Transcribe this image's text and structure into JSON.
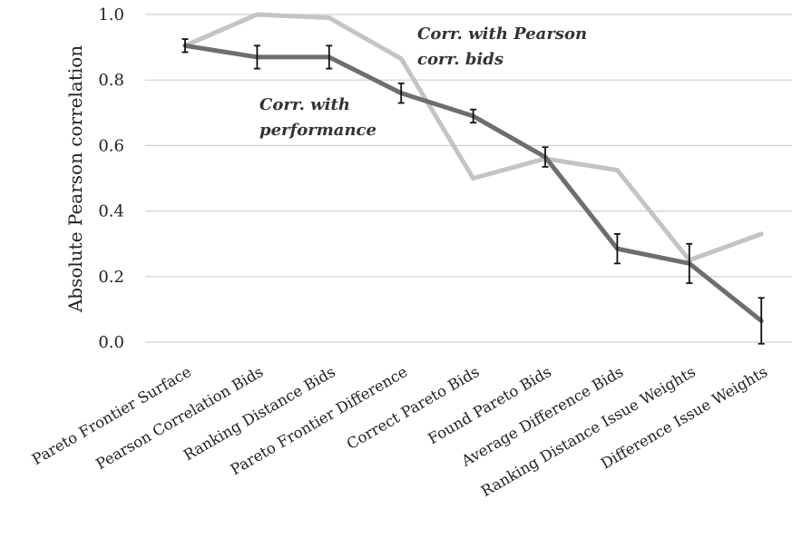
{
  "chart_data": {
    "type": "line",
    "ylabel": "Absolute Pearson correlation",
    "ylim": [
      0,
      1
    ],
    "yticks": [
      "0.0",
      "0.2",
      "0.4",
      "0.6",
      "0.8",
      "1.0"
    ],
    "grid": true,
    "categories": [
      "Pareto Frontier Surface",
      "Pearson Correlation Bids",
      "Ranking Distance Bids",
      "Pareto Frontier Difference",
      "Correct Pareto Bids",
      "Found Pareto Bids",
      "Average Difference Bids",
      "Ranking Distance Issue Weights",
      "Difference Issue Weights"
    ],
    "series": [
      {
        "name": "Corr. with performance",
        "color": "#6e6e6e",
        "values": [
          0.905,
          0.87,
          0.87,
          0.76,
          0.69,
          0.565,
          0.285,
          0.24,
          0.065
        ],
        "error": [
          0.02,
          0.035,
          0.035,
          0.03,
          0.02,
          0.03,
          0.045,
          0.06,
          0.07
        ]
      },
      {
        "name": "Corr. with Pearson corr. bids",
        "color": "#c4c4c4",
        "values": [
          0.905,
          1.0,
          0.99,
          0.865,
          0.5,
          0.56,
          0.525,
          0.25,
          0.33
        ]
      }
    ],
    "annotations": {
      "pearson_line1": "Corr. with Pearson",
      "pearson_line2": "corr. bids",
      "performance_line1": "Corr. with",
      "performance_line2": "performance"
    }
  }
}
